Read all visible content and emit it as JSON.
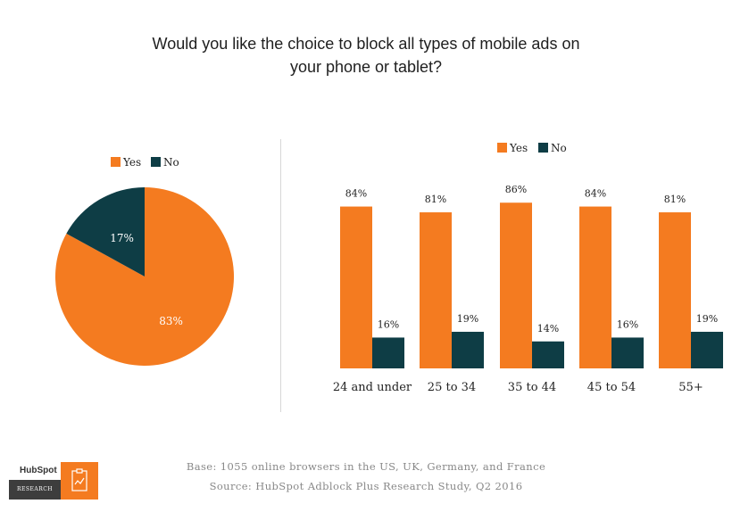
{
  "title": {
    "line1": "Would you like the choice to block all types of mobile ads on",
    "line2": "your phone or tablet?"
  },
  "colors": {
    "yes": "#f47b20",
    "no": "#0e3d45"
  },
  "chart_data": [
    {
      "type": "pie",
      "legend": [
        "Yes",
        "No"
      ],
      "legend_position": "top",
      "slices": [
        {
          "label": "Yes",
          "value": 83,
          "text": "83%"
        },
        {
          "label": "No",
          "value": 17,
          "text": "17%"
        }
      ]
    },
    {
      "type": "bar",
      "legend": [
        "Yes",
        "No"
      ],
      "legend_position": "top",
      "categories": [
        "24 and under",
        "25 to 34",
        "35 to 44",
        "45 to 54",
        "55+"
      ],
      "series": [
        {
          "name": "Yes",
          "values": [
            84,
            81,
            86,
            84,
            81
          ],
          "labels": [
            "84%",
            "81%",
            "86%",
            "84%",
            "81%"
          ]
        },
        {
          "name": "No",
          "values": [
            16,
            19,
            14,
            16,
            19
          ],
          "labels": [
            "16%",
            "19%",
            "14%",
            "16%",
            "19%"
          ]
        }
      ],
      "ylim": [
        0,
        100
      ],
      "grid": false
    }
  ],
  "footer": {
    "base": "Base: 1055 online browsers in the US, UK, Germany, and France",
    "source": "Source: HubSpot Adblock Plus Research Study, Q2 2016"
  },
  "logo": {
    "brand": "HubSpot",
    "sub": "RESEARCH"
  }
}
